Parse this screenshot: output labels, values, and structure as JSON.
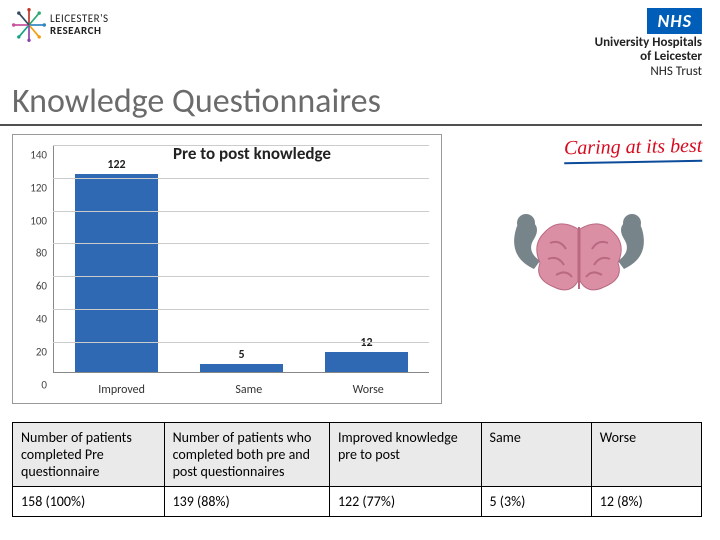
{
  "header": {
    "left_logo_line1": "LEICESTER'S",
    "left_logo_line2": "RESEARCH",
    "nhs_badge": "NHS",
    "nhs_line1": "University Hospitals",
    "nhs_line2": "of Leicester",
    "nhs_line3": "NHS Trust"
  },
  "title": "Knowledge Questionnaires",
  "caring": "Caring at its best",
  "chart": {
    "type": "bar",
    "title": "Pre to post knowledge",
    "title_fontsize": 17,
    "categories": [
      "Improved",
      "Same",
      "Worse"
    ],
    "values": [
      122,
      5,
      12
    ],
    "bar_color": "#2f69b3",
    "ylim": [
      0,
      140
    ],
    "ytick_step": 20,
    "background_color": "#ffffff",
    "grid_color": "#cccccc",
    "axis_color": "#888888",
    "label_fontsize": 12,
    "bar_width_pct": 22
  },
  "table": {
    "columns": [
      "Number of patients completed Pre questionnaire",
      "Number of patients who completed both pre and post questionnaires",
      "Improved knowledge pre to post",
      "Same",
      "Worse"
    ],
    "rows": [
      [
        "158 (100%)",
        "139 (88%)",
        "122 (77%)",
        "5 (3%)",
        "12 (8%)"
      ]
    ],
    "header_bg": "#eaeaea",
    "border_color": "#000000"
  },
  "brain": {
    "brain_color": "#da8fa4",
    "brain_dark": "#b96a82",
    "arm_color": "#77848a"
  }
}
